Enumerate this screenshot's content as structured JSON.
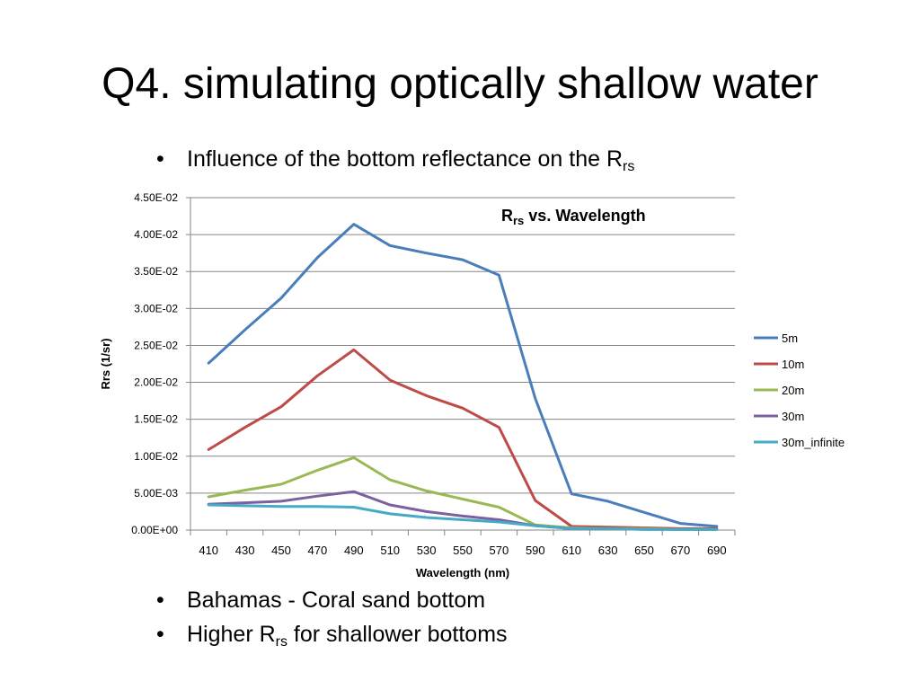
{
  "slide": {
    "title": "Q4. simulating optically shallow water",
    "bullet_dot": "•",
    "top_bullet": {
      "text": "Influence of the bottom reflectance on the R",
      "sub": "rs"
    },
    "bottom_bullets": [
      {
        "text": "Bahamas - Coral sand bottom",
        "sub": "",
        "after": ""
      },
      {
        "text": "Higher R",
        "sub": "rs",
        "after": " for shallower bottoms"
      }
    ]
  },
  "chart_data": {
    "type": "line",
    "title": "R",
    "title_sub": "rs",
    "title_after": " vs. Wavelength",
    "xlabel": "Wavelength (nm)",
    "ylabel": "Rrs (1/sr)",
    "categories": [
      "410",
      "430",
      "450",
      "470",
      "490",
      "510",
      "530",
      "550",
      "570",
      "590",
      "610",
      "630",
      "650",
      "670",
      "690"
    ],
    "ylim": [
      0,
      0.045
    ],
    "yticks": [
      0,
      0.005,
      0.01,
      0.015,
      0.02,
      0.025,
      0.03,
      0.035,
      0.04,
      0.045
    ],
    "ytick_labels": [
      "0.00E+00",
      "5.00E-03",
      "1.00E-02",
      "1.50E-02",
      "2.00E-02",
      "2.50E-02",
      "3.00E-02",
      "3.50E-02",
      "4.00E-02",
      "4.50E-02"
    ],
    "grid": true,
    "legend_position": "right",
    "series": [
      {
        "name": "5m",
        "color": "#4a7ebb",
        "values": [
          0.0226,
          0.0271,
          0.0314,
          0.0369,
          0.0414,
          0.0385,
          0.0375,
          0.0366,
          0.0345,
          0.0178,
          0.0049,
          0.0039,
          0.0024,
          0.0009,
          0.0005
        ]
      },
      {
        "name": "10m",
        "color": "#be4b48",
        "values": [
          0.0109,
          0.0139,
          0.0167,
          0.0209,
          0.0244,
          0.0203,
          0.0182,
          0.0165,
          0.0139,
          0.004,
          0.0005,
          0.0004,
          0.0003,
          0.0002,
          0.0002
        ]
      },
      {
        "name": "20m",
        "color": "#98b954",
        "values": [
          0.0045,
          0.0054,
          0.0062,
          0.0081,
          0.0098,
          0.0068,
          0.0053,
          0.0042,
          0.0031,
          0.0007,
          0.0003,
          0.0002,
          0.0002,
          0.0001,
          0.0001
        ]
      },
      {
        "name": "30m",
        "color": "#7d60a0",
        "values": [
          0.0035,
          0.0037,
          0.0039,
          0.0046,
          0.0052,
          0.0034,
          0.0025,
          0.0019,
          0.0014,
          0.0006,
          0.0002,
          0.0002,
          0.0001,
          0.0001,
          0.0001
        ]
      },
      {
        "name": "30m_infinite",
        "color": "#46aac5",
        "values": [
          0.0034,
          0.0033,
          0.0032,
          0.0032,
          0.0031,
          0.0022,
          0.0017,
          0.0014,
          0.0011,
          0.0006,
          0.0002,
          0.0002,
          0.0001,
          0.0001,
          0.0001
        ]
      }
    ]
  }
}
